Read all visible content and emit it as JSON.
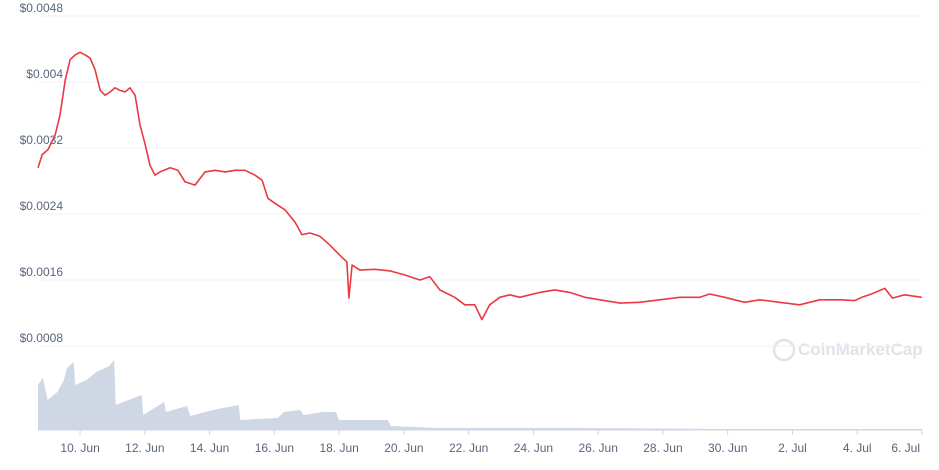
{
  "chart_data": {
    "type": "line",
    "color": "#ea3943",
    "grid": true,
    "xlim": [
      8.7,
      36
    ],
    "ylim": [
      0,
      0.0048
    ],
    "yticks": [
      {
        "value": 0.0008,
        "label": "$0.0008"
      },
      {
        "value": 0.0016,
        "label": "$0.0016"
      },
      {
        "value": 0.0024,
        "label": "$0.0024"
      },
      {
        "value": 0.0032,
        "label": "$0.0032"
      },
      {
        "value": 0.004,
        "label": "$0.004"
      },
      {
        "value": 0.0048,
        "label": "$0.0048"
      }
    ],
    "xticks": [
      {
        "value": 10,
        "label": "10. Jun"
      },
      {
        "value": 12,
        "label": "12. Jun"
      },
      {
        "value": 14,
        "label": "14. Jun"
      },
      {
        "value": 16,
        "label": "16. Jun"
      },
      {
        "value": 18,
        "label": "18. Jun"
      },
      {
        "value": 20,
        "label": "20. Jun"
      },
      {
        "value": 22,
        "label": "22. Jun"
      },
      {
        "value": 24,
        "label": "24. Jun"
      },
      {
        "value": 26,
        "label": "26. Jun"
      },
      {
        "value": 28,
        "label": "28. Jun"
      },
      {
        "value": 30,
        "label": "30. Jun"
      },
      {
        "value": 32,
        "label": "2. Jul"
      },
      {
        "value": 34,
        "label": "4. Jul"
      },
      {
        "value": 36,
        "label": "6. Jul"
      }
    ],
    "x": [
      8.7,
      8.83,
      9.01,
      9.23,
      9.38,
      9.54,
      9.69,
      9.85,
      10.0,
      10.15,
      10.31,
      10.46,
      10.62,
      10.77,
      10.93,
      11.08,
      11.23,
      11.39,
      11.54,
      11.7,
      11.85,
      12.01,
      12.16,
      12.31,
      12.47,
      12.78,
      13.02,
      13.24,
      13.55,
      13.86,
      14.17,
      14.48,
      14.78,
      15.09,
      15.4,
      15.62,
      15.8,
      16.02,
      16.33,
      16.64,
      16.85,
      17.1,
      17.41,
      17.72,
      18.02,
      18.24,
      18.3,
      18.4,
      18.64,
      19.1,
      19.57,
      20.03,
      20.49,
      20.8,
      21.11,
      21.57,
      21.88,
      22.19,
      22.41,
      22.65,
      22.96,
      23.27,
      23.58,
      23.89,
      24.2,
      24.66,
      25.12,
      25.59,
      26.05,
      26.67,
      27.28,
      27.9,
      28.52,
      29.14,
      29.44,
      29.91,
      30.52,
      30.99,
      31.6,
      32.22,
      32.84,
      33.46,
      33.92,
      34.14,
      34.44,
      34.85,
      35.09,
      35.46,
      35.99
    ],
    "values": [
      0.00296,
      0.00312,
      0.00318,
      0.00336,
      0.0036,
      0.00402,
      0.00427,
      0.00433,
      0.00436,
      0.00433,
      0.00429,
      0.00415,
      0.0039,
      0.00384,
      0.00388,
      0.00393,
      0.0039,
      0.00388,
      0.00393,
      0.00384,
      0.00348,
      0.00324,
      0.00299,
      0.00287,
      0.00291,
      0.00296,
      0.00293,
      0.00279,
      0.00275,
      0.00291,
      0.00293,
      0.00291,
      0.00293,
      0.00293,
      0.00287,
      0.00281,
      0.00259,
      0.00253,
      0.00245,
      0.0023,
      0.00215,
      0.00217,
      0.00213,
      0.00202,
      0.0019,
      0.00182,
      0.00138,
      0.00178,
      0.00172,
      0.00173,
      0.00171,
      0.00166,
      0.0016,
      0.00164,
      0.00148,
      0.00139,
      0.0013,
      0.0013,
      0.00112,
      0.0013,
      0.00139,
      0.00142,
      0.00139,
      0.00142,
      0.00145,
      0.00148,
      0.00145,
      0.00139,
      0.00136,
      0.00132,
      0.00133,
      0.00136,
      0.00139,
      0.00139,
      0.00143,
      0.00139,
      0.00133,
      0.00136,
      0.00133,
      0.0013,
      0.00136,
      0.00136,
      0.00135,
      0.00139,
      0.00143,
      0.0015,
      0.00138,
      0.00142,
      0.00139
    ],
    "volume": {
      "color": "#cfd6e4",
      "ylim": [
        0,
        80
      ],
      "x": [
        8.7,
        8.85,
        9.0,
        9.3,
        9.5,
        9.6,
        9.8,
        9.85,
        10.2,
        10.5,
        10.9,
        11.05,
        11.1,
        11.5,
        11.9,
        11.95,
        12.3,
        12.6,
        12.65,
        13.3,
        13.4,
        14.1,
        14.9,
        14.95,
        16.1,
        16.3,
        16.8,
        16.9,
        17.5,
        17.9,
        18.0,
        19.5,
        19.6,
        21.0,
        22.0,
        25.0,
        30.0,
        36.0
      ],
      "values": [
        45,
        52,
        30,
        38,
        50,
        62,
        68,
        45,
        50,
        58,
        64,
        70,
        25,
        30,
        35,
        15,
        22,
        28,
        18,
        24,
        14,
        20,
        25,
        10,
        12,
        18,
        20,
        15,
        18,
        18,
        10,
        10,
        4,
        2,
        2,
        2,
        1,
        1
      ]
    },
    "watermark": "CoinMarketCap"
  }
}
